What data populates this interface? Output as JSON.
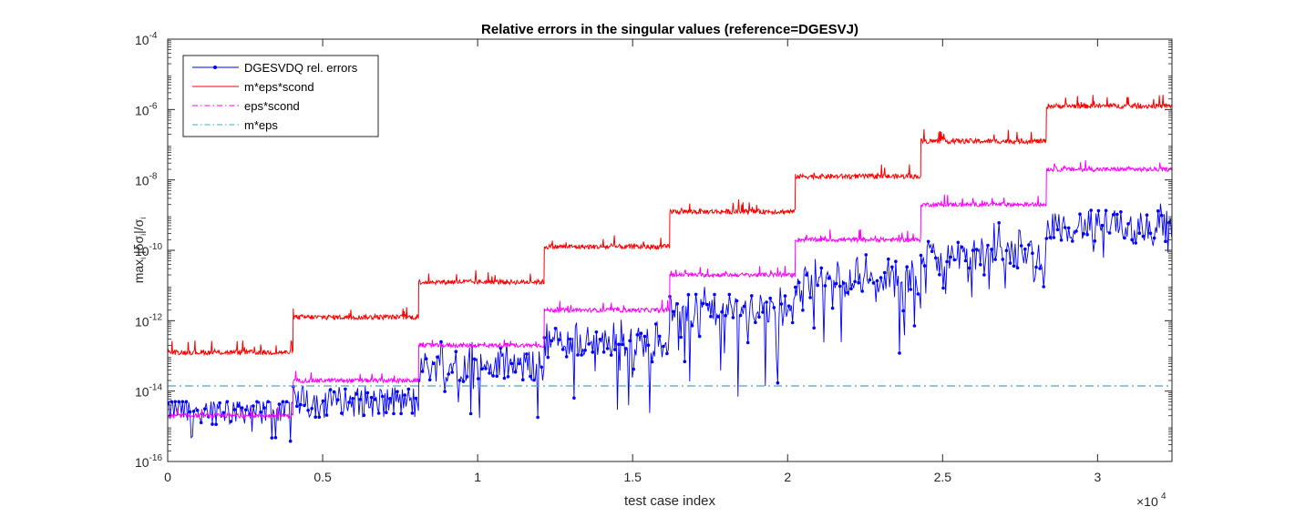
{
  "chart_data": {
    "type": "line",
    "title": "Relative errors in the singular values (reference=DGESVJ)",
    "xlabel": "test case index",
    "ylabel": "max_i |δσ_i|/σ_i",
    "ylabel_parts": {
      "base": "max",
      "sub": "i",
      "rest": " |δσ",
      "sub2": "i",
      "rest2": "|/σ",
      "sub3": "i"
    },
    "x_exponent_label": "×10",
    "x_exponent_power": "4",
    "x_scale": 10000,
    "xlim": [
      0,
      32400
    ],
    "ylim_log10": [
      -16,
      -4
    ],
    "y_scale": "log",
    "grid": false,
    "legend_position": "top-left",
    "x_ticks": [
      0,
      5000,
      10000,
      15000,
      20000,
      25000,
      30000
    ],
    "x_tick_labels": [
      "0",
      "0.5",
      "1",
      "1.5",
      "2",
      "2.5",
      "3"
    ],
    "y_ticks_log10": [
      -16,
      -14,
      -12,
      -10,
      -8,
      -6,
      -4
    ],
    "y_tick_labels": [
      {
        "base": "10",
        "exp": "-16"
      },
      {
        "base": "10",
        "exp": "-14"
      },
      {
        "base": "10",
        "exp": "-12"
      },
      {
        "base": "10",
        "exp": "-10"
      },
      {
        "base": "10",
        "exp": "-8"
      },
      {
        "base": "10",
        "exp": "-6"
      },
      {
        "base": "10",
        "exp": "-4"
      }
    ],
    "block_edges": [
      0,
      4050,
      8100,
      12150,
      16200,
      20250,
      24300,
      28350,
      32400
    ],
    "series": [
      {
        "name": "DGESVDQ rel. errors",
        "color": "#0000ff",
        "style": "solid-with-dot-markers",
        "block_median_log10": [
          -14.5,
          -14.3,
          -13.3,
          -12.6,
          -11.7,
          -10.9,
          -10.1,
          -9.3
        ],
        "block_max_log10": [
          -14.3,
          -13.8,
          -12.6,
          -11.9,
          -11.0,
          -10.1,
          -9.2,
          -8.4
        ],
        "block_min_log10": [
          -15.6,
          -14.9,
          -14.8,
          -14.7,
          -14.2,
          -13.2,
          -11.4,
          -10.8
        ]
      },
      {
        "name": "m*eps*scond",
        "color": "#ff0000",
        "style": "solid",
        "block_values_log10": [
          -12.9,
          -11.9,
          -10.9,
          -9.9,
          -8.9,
          -7.9,
          -6.9,
          -5.9
        ]
      },
      {
        "name": "eps*scond",
        "color": "#ff00ff",
        "style": "dash-dot",
        "block_values_log10": [
          -14.7,
          -13.7,
          -12.7,
          -11.7,
          -10.7,
          -9.7,
          -8.7,
          -7.7
        ]
      },
      {
        "name": "m*eps",
        "color": "#4aa7b8",
        "style": "dash-dot",
        "constant_value": 1.4e-14
      }
    ]
  }
}
